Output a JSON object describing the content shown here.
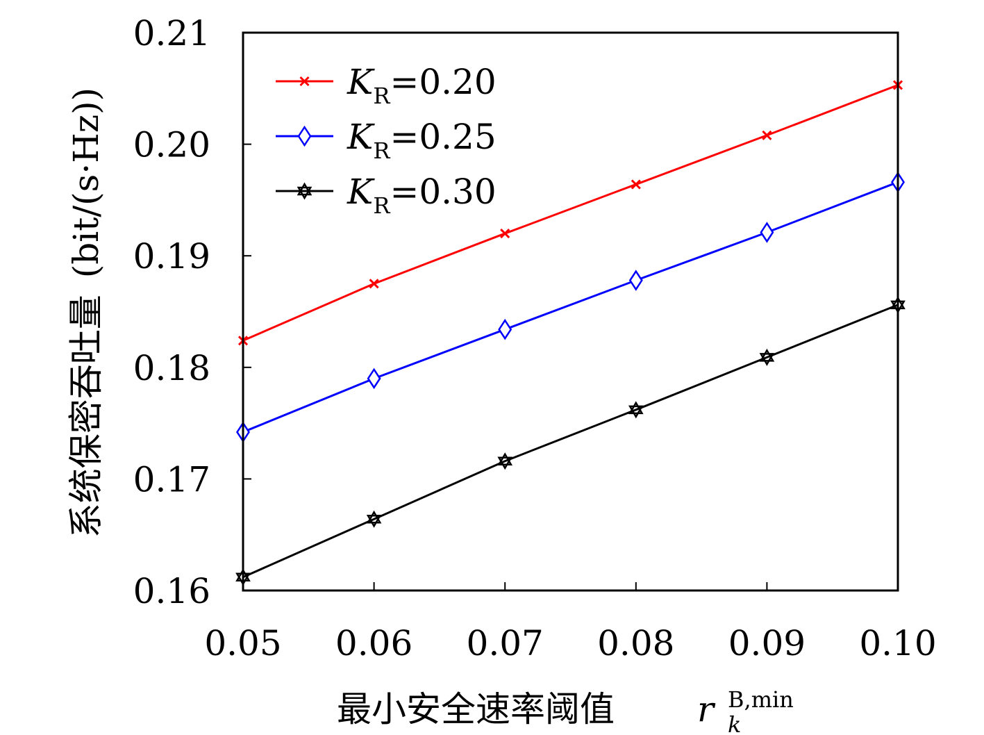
{
  "chart_data": {
    "type": "line",
    "x": [
      0.05,
      0.06,
      0.07,
      0.08,
      0.09,
      0.1
    ],
    "xlim": [
      0.05,
      0.1
    ],
    "ylim": [
      0.16,
      0.21
    ],
    "x_ticks": [
      "0.05",
      "0.06",
      "0.07",
      "0.08",
      "0.09",
      "0.10"
    ],
    "y_ticks": [
      "0.16",
      "0.17",
      "0.18",
      "0.19",
      "0.20",
      "0.21"
    ],
    "xlabel": {
      "text": "最小安全速率阈值",
      "math_var": "r",
      "math_sub": "k",
      "math_sup": "B,min"
    },
    "ylabel": {
      "text": "系统保密吞吐量",
      "unit": "(bit/(s·Hz))"
    },
    "grid": false,
    "legend_position": "top-left",
    "series": [
      {
        "name": "K_R=0.20",
        "legend_var": "K",
        "legend_sub": "R",
        "legend_value": "=0.20",
        "color": "#ff0000",
        "marker": "x",
        "values": [
          0.1824,
          0.1875,
          0.192,
          0.1964,
          0.2008,
          0.2053
        ]
      },
      {
        "name": "K_R=0.25",
        "legend_var": "K",
        "legend_sub": "R",
        "legend_value": "=0.25",
        "color": "#0000ff",
        "marker": "diamond",
        "values": [
          0.1742,
          0.179,
          0.1834,
          0.1878,
          0.1921,
          0.1966
        ]
      },
      {
        "name": "K_R=0.30",
        "legend_var": "K",
        "legend_sub": "R",
        "legend_value": "=0.30",
        "color": "#000000",
        "marker": "hexagram",
        "values": [
          0.1612,
          0.1664,
          0.1716,
          0.1762,
          0.1809,
          0.1856
        ]
      }
    ]
  }
}
